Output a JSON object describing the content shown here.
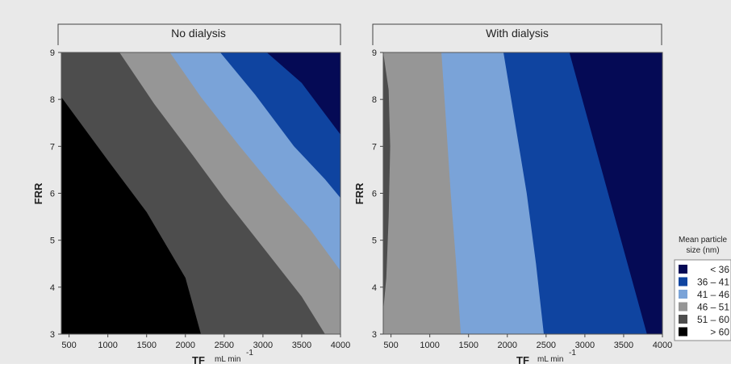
{
  "figure": {
    "background": "#e9e9e9",
    "legend": {
      "title_lines": [
        "Mean particle",
        "size (nm)"
      ],
      "entries": [
        {
          "label": "< 36",
          "color": "#050a55"
        },
        {
          "label": "36 – 41",
          "color": "#0f44a0"
        },
        {
          "label": "41 – 46",
          "color": "#7aa3d8"
        },
        {
          "label": "46 – 51",
          "color": "#969696"
        },
        {
          "label": "51 – 60",
          "color": "#4d4d4d"
        },
        {
          "label": "> 60",
          "color": "#000000"
        }
      ]
    }
  },
  "chart_data": [
    {
      "type": "heatmap",
      "subtype": "contour",
      "title": "No dialysis",
      "xlabel": "TF",
      "xunit": "mL min",
      "xunit_exp": "-1",
      "ylabel": "FRR",
      "xlim": [
        400,
        4000
      ],
      "ylim": [
        3,
        9
      ],
      "xticks": [
        500,
        1000,
        1500,
        2000,
        2500,
        3000,
        3500,
        4000
      ],
      "yticks": [
        3,
        4,
        5,
        6,
        7,
        8,
        9
      ],
      "levels": [
        "> 60",
        "51 – 60",
        "46 – 51",
        "41 – 46",
        "36 – 41",
        "< 36"
      ],
      "level_colors": [
        "#000000",
        "#4d4d4d",
        "#969696",
        "#7aa3d8",
        "#0f44a0",
        "#050a55"
      ],
      "boundaries": [
        {
          "between": [
            "> 60",
            "51 – 60"
          ],
          "points": [
            [
              400,
              8.05
            ],
            [
              1000,
              6.7
            ],
            [
              1500,
              5.6
            ],
            [
              2000,
              4.2
            ],
            [
              2200,
              3.0
            ]
          ]
        },
        {
          "between": [
            "51 – 60",
            "46 – 51"
          ],
          "points": [
            [
              1150,
              9.0
            ],
            [
              1600,
              7.9
            ],
            [
              2100,
              6.8
            ],
            [
              2500,
              5.9
            ],
            [
              3000,
              4.85
            ],
            [
              3500,
              3.8
            ],
            [
              3800,
              3.0
            ]
          ]
        },
        {
          "between": [
            "46 – 51",
            "41 – 46"
          ],
          "points": [
            [
              1800,
              9.0
            ],
            [
              2200,
              8.05
            ],
            [
              2700,
              7.0
            ],
            [
              3200,
              6.0
            ],
            [
              3600,
              5.25
            ],
            [
              4000,
              4.35
            ]
          ]
        },
        {
          "between": [
            "41 – 46",
            "36 – 41"
          ],
          "points": [
            [
              2450,
              9.0
            ],
            [
              2900,
              8.1
            ],
            [
              3400,
              7.0
            ],
            [
              3800,
              6.3
            ],
            [
              4000,
              5.9
            ]
          ]
        },
        {
          "between": [
            "36 – 41",
            "< 36"
          ],
          "points": [
            [
              3050,
              9.0
            ],
            [
              3500,
              8.35
            ],
            [
              4000,
              7.25
            ]
          ]
        }
      ]
    },
    {
      "type": "heatmap",
      "subtype": "contour",
      "title": "With dialysis",
      "xlabel": "TF",
      "xunit": "mL min",
      "xunit_exp": "-1",
      "ylabel": "FRR",
      "xlim": [
        400,
        4000
      ],
      "ylim": [
        3,
        9
      ],
      "xticks": [
        500,
        1000,
        1500,
        2000,
        2500,
        3000,
        3500,
        4000
      ],
      "yticks": [
        3,
        4,
        5,
        6,
        7,
        8,
        9
      ],
      "levels": [
        "51 – 60",
        "46 – 51",
        "41 – 46",
        "36 – 41",
        "< 36"
      ],
      "level_colors": [
        "#4d4d4d",
        "#969696",
        "#7aa3d8",
        "#0f44a0",
        "#050a55"
      ],
      "boundaries": [
        {
          "between": [
            "51 – 60",
            "46 – 51"
          ],
          "points": [
            [
              400,
              9.0
            ],
            [
              470,
              8.2
            ],
            [
              490,
              7.0
            ],
            [
              470,
              5.5
            ],
            [
              440,
              4.2
            ],
            [
              400,
              3.5
            ]
          ]
        },
        {
          "between": [
            "46 – 51",
            "41 – 46"
          ],
          "points": [
            [
              1150,
              9.0
            ],
            [
              1210,
              7.5
            ],
            [
              1270,
              6.0
            ],
            [
              1340,
              4.5
            ],
            [
              1400,
              3.0
            ]
          ]
        },
        {
          "between": [
            "41 – 46",
            "36 – 41"
          ],
          "points": [
            [
              1950,
              9.0
            ],
            [
              2100,
              7.5
            ],
            [
              2250,
              6.0
            ],
            [
              2370,
              4.5
            ],
            [
              2470,
              3.0
            ]
          ]
        },
        {
          "between": [
            "36 – 41",
            "< 36"
          ],
          "points": [
            [
              2800,
              9.0
            ],
            [
              3050,
              7.5
            ],
            [
              3350,
              5.7
            ],
            [
              3600,
              4.2
            ],
            [
              3800,
              3.0
            ]
          ]
        }
      ]
    }
  ]
}
